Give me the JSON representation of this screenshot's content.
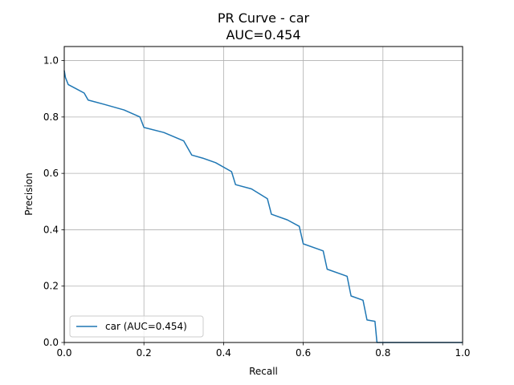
{
  "chart_data": {
    "type": "line",
    "title": "PR Curve - car",
    "subtitle": "AUC=0.454",
    "xlabel": "Recall",
    "ylabel": "Precision",
    "xlim": [
      0,
      1
    ],
    "ylim": [
      0,
      1.05
    ],
    "xticks": [
      0,
      0.2,
      0.4,
      0.6,
      0.8,
      1.0
    ],
    "xtick_labels": [
      "0.0",
      "0.2",
      "0.4",
      "0.6",
      "0.8",
      "1.0"
    ],
    "yticks": [
      0,
      0.2,
      0.4,
      0.6,
      0.8,
      1.0
    ],
    "ytick_labels": [
      "0.0",
      "0.2",
      "0.4",
      "0.6",
      "0.8",
      "1.0"
    ],
    "grid": true,
    "legend_position": "lower-left",
    "series": [
      {
        "name": "car (AUC=0.454)",
        "color": "#1f77b4",
        "x": [
          0.0,
          0.003,
          0.01,
          0.03,
          0.05,
          0.06,
          0.1,
          0.15,
          0.19,
          0.2,
          0.25,
          0.3,
          0.31,
          0.32,
          0.35,
          0.38,
          0.42,
          0.43,
          0.47,
          0.51,
          0.52,
          0.56,
          0.59,
          0.6,
          0.65,
          0.66,
          0.71,
          0.72,
          0.75,
          0.76,
          0.78,
          0.785,
          0.8,
          1.0
        ],
        "y": [
          0.965,
          0.94,
          0.915,
          0.9,
          0.885,
          0.86,
          0.845,
          0.825,
          0.8,
          0.763,
          0.745,
          0.715,
          0.69,
          0.665,
          0.653,
          0.638,
          0.606,
          0.56,
          0.545,
          0.51,
          0.455,
          0.435,
          0.412,
          0.35,
          0.325,
          0.26,
          0.235,
          0.165,
          0.15,
          0.08,
          0.075,
          0.0,
          0.0,
          0.0
        ]
      }
    ]
  }
}
